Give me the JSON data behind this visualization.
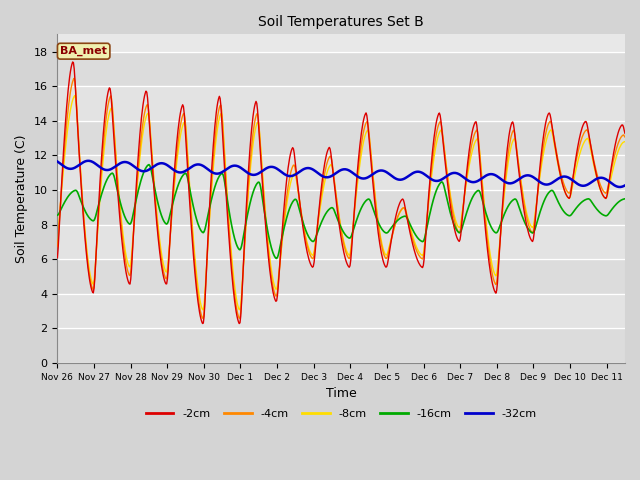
{
  "title": "Soil Temperatures Set B",
  "xlabel": "Time",
  "ylabel": "Soil Temperature (C)",
  "annotation": "BA_met",
  "ylim": [
    0,
    19
  ],
  "yticks": [
    0,
    2,
    4,
    6,
    8,
    10,
    12,
    14,
    16,
    18
  ],
  "legend_labels": [
    "-2cm",
    "-4cm",
    "-8cm",
    "-16cm",
    "-32cm"
  ],
  "colors": {
    "-2cm": "#dd0000",
    "-4cm": "#ff8800",
    "-8cm": "#ffdd00",
    "-16cm": "#00aa00",
    "-32cm": "#0000cc"
  },
  "xtick_labels": [
    "Nov 26",
    "Nov 27",
    "Nov 28",
    "Nov 29",
    "Nov 30",
    "Dec 1",
    "Dec 2",
    "Dec 3",
    "Dec 4",
    "Dec 5",
    "Dec 6",
    "Dec 7",
    "Dec 8",
    "Dec 9",
    "Dec 10",
    "Dec 11"
  ],
  "fig_bg": "#d4d4d4",
  "plot_bg": "#e8e8e8",
  "grid_color": "#ffffff"
}
